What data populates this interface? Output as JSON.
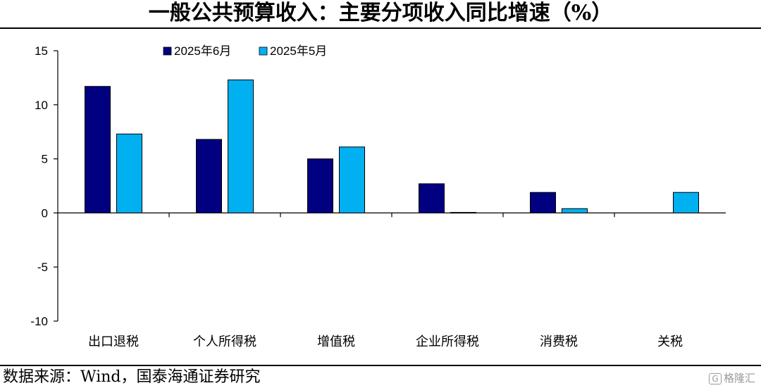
{
  "title": "一般公共预算收入：主要分项收入同比增速（%）",
  "source": "数据来源：Wind，国泰海通证券研究",
  "watermark": {
    "icon": "G",
    "text": "格隆汇"
  },
  "chart_data": {
    "type": "bar",
    "categories": [
      "出口退税",
      "个人所得税",
      "增值税",
      "企业所得税",
      "消费税",
      "关税"
    ],
    "series": [
      {
        "name": "2025年6月",
        "color": "#000080",
        "values": [
          11.7,
          6.8,
          5.0,
          2.7,
          1.9,
          0.0
        ]
      },
      {
        "name": "2025年5月",
        "color": "#00b0f0",
        "values": [
          7.3,
          12.3,
          6.1,
          0.05,
          0.4,
          1.9
        ]
      }
    ],
    "ylim": [
      -10,
      15
    ],
    "yticks": [
      15,
      10,
      5,
      0,
      -5,
      -10
    ],
    "xlabel": "",
    "ylabel": "",
    "legend_position": "top-left",
    "grid": false
  }
}
